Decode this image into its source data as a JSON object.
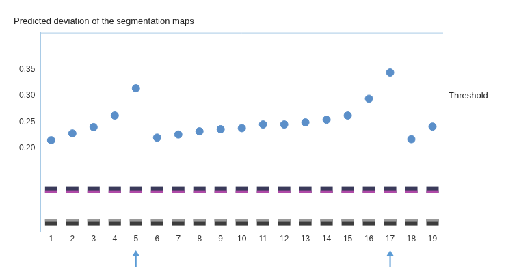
{
  "chart_data": {
    "type": "scatter",
    "title": "Predicted deviation of the segmentation maps",
    "x": [
      1,
      2,
      3,
      4,
      5,
      6,
      7,
      8,
      9,
      10,
      11,
      12,
      13,
      14,
      15,
      16,
      17,
      18,
      19
    ],
    "values": [
      0.215,
      0.228,
      0.24,
      0.262,
      0.314,
      0.22,
      0.226,
      0.232,
      0.236,
      0.238,
      0.245,
      0.245,
      0.249,
      0.254,
      0.262,
      0.294,
      0.344,
      0.217,
      0.241
    ],
    "color": "#5b8fc9",
    "marker": "circle",
    "xlim": [
      0.5,
      19.5
    ],
    "xticks": [
      1,
      2,
      3,
      4,
      5,
      6,
      7,
      8,
      9,
      10,
      11,
      12,
      13,
      14,
      15,
      16,
      17,
      18,
      19
    ],
    "ylim": [
      0.04,
      0.42
    ],
    "yticks": [
      {
        "value": 0.2,
        "label": "0.20"
      },
      0.25,
      {
        "value": 0.3,
        "label": "0.30"
      },
      0.35
    ],
    "grid": false,
    "annotations": [
      {
        "type": "hline",
        "y": 0.3,
        "label": "Threshold"
      }
    ]
  }
}
